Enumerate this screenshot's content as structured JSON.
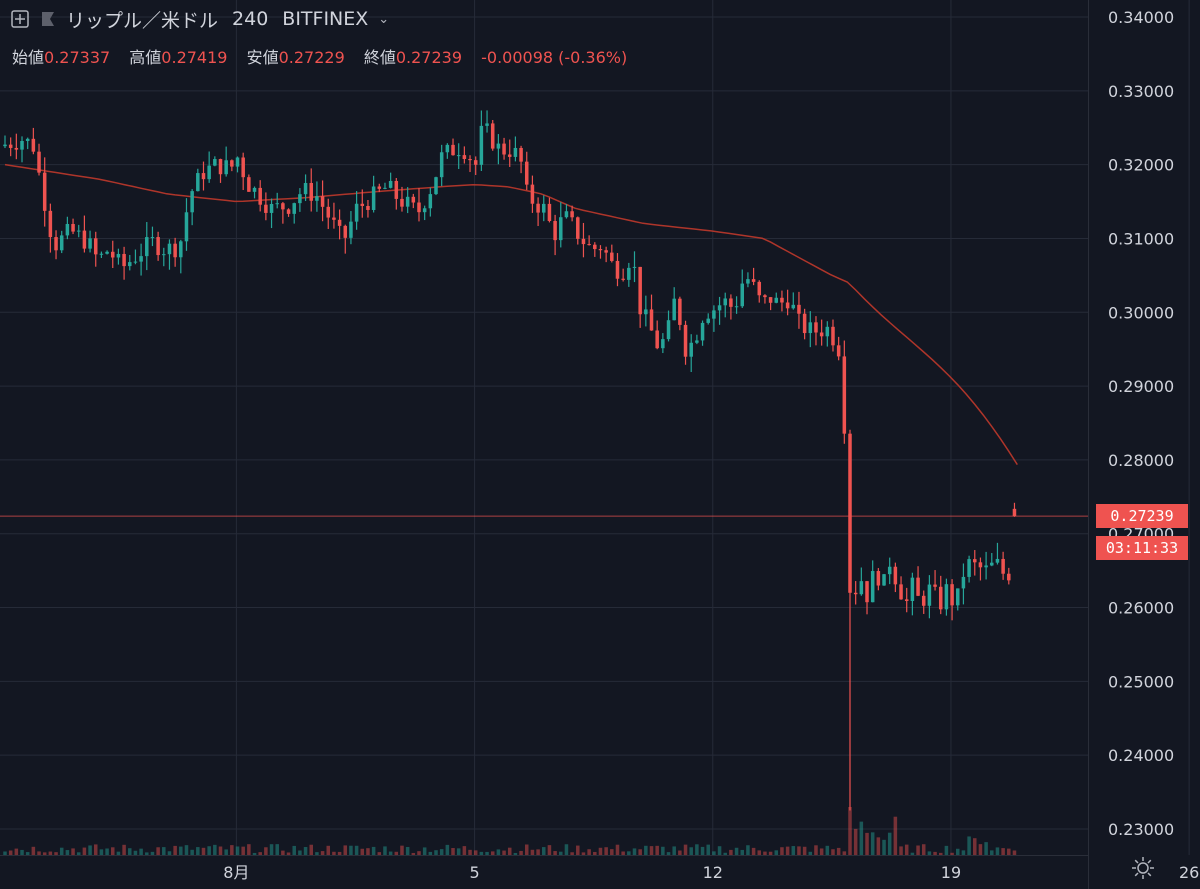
{
  "header": {
    "symbol": "リップル／米ドル",
    "interval": "240",
    "exchange": "BITFINEX"
  },
  "ohlc": {
    "open_label": "始値",
    "open": "0.27337",
    "high_label": "高値",
    "high": "0.27419",
    "low_label": "安値",
    "low": "0.27229",
    "close_label": "終値",
    "close": "0.27239",
    "change": "-0.00098 (-0.36%)"
  },
  "price_tag": {
    "last": "0.27239",
    "countdown": "03:11:33"
  },
  "colors": {
    "background": "#131722",
    "grid": "#262b38",
    "text": "#d1d4dc",
    "up": "#26a69a",
    "down": "#ef5350",
    "ma": "#c0392b"
  },
  "icons": [
    "add-symbol-icon",
    "flag-icon",
    "chevron-down-icon",
    "settings-sun-icon"
  ],
  "chart_data": {
    "type": "candlestick",
    "title": "リップル／米ドル 240 BITFINEX",
    "y_ticks": [
      "0.34000",
      "0.33000",
      "0.32000",
      "0.31000",
      "0.30000",
      "0.29000",
      "0.28000",
      "0.27000",
      "0.26000",
      "0.25000",
      "0.24000",
      "0.23000"
    ],
    "x_ticks": [
      "8月",
      "5",
      "12",
      "19",
      "26"
    ],
    "ylim": [
      0.2275,
      0.3425
    ],
    "day_range": [
      1.2,
      31
    ],
    "x_tick_days": [
      8,
      15,
      22,
      29,
      36
    ],
    "grid": true,
    "series": [
      {
        "name": "OHLC",
        "type": "candlestick",
        "anchors": [
          [
            1.2,
            0.3225
          ],
          [
            1.9,
            0.3235
          ],
          [
            2.2,
            0.3225
          ],
          [
            2.8,
            0.309
          ],
          [
            3.3,
            0.311
          ],
          [
            3.8,
            0.3095
          ],
          [
            4.1,
            0.307
          ],
          [
            4.4,
            0.3085
          ],
          [
            4.8,
            0.306
          ],
          [
            5.3,
            0.308
          ],
          [
            5.7,
            0.3095
          ],
          [
            6.1,
            0.3085
          ],
          [
            6.5,
            0.309
          ],
          [
            6.8,
            0.316
          ],
          [
            7.2,
            0.319
          ],
          [
            7.6,
            0.32
          ],
          [
            8.0,
            0.3195
          ],
          [
            8.2,
            0.321
          ],
          [
            8.5,
            0.3175
          ],
          [
            8.8,
            0.316
          ],
          [
            9.2,
            0.314
          ],
          [
            9.7,
            0.3145
          ],
          [
            10.1,
            0.3165
          ],
          [
            10.5,
            0.316
          ],
          [
            11.0,
            0.312
          ],
          [
            11.3,
            0.3095
          ],
          [
            11.7,
            0.314
          ],
          [
            12.0,
            0.315
          ],
          [
            12.3,
            0.316
          ],
          [
            12.6,
            0.317
          ],
          [
            12.9,
            0.3155
          ],
          [
            13.2,
            0.3145
          ],
          [
            13.5,
            0.3135
          ],
          [
            13.9,
            0.317
          ],
          [
            14.2,
            0.321
          ],
          [
            14.5,
            0.322
          ],
          [
            14.8,
            0.3225
          ],
          [
            15.2,
            0.32
          ],
          [
            15.4,
            0.325
          ],
          [
            15.6,
            0.324
          ],
          [
            15.9,
            0.322
          ],
          [
            16.2,
            0.322
          ],
          [
            16.5,
            0.321
          ],
          [
            16.7,
            0.316
          ],
          [
            16.9,
            0.315
          ],
          [
            17.2,
            0.314
          ],
          [
            17.5,
            0.3105
          ],
          [
            17.8,
            0.313
          ],
          [
            18.0,
            0.312
          ],
          [
            18.3,
            0.31
          ],
          [
            18.6,
            0.3085
          ],
          [
            18.9,
            0.309
          ],
          [
            19.2,
            0.3065
          ],
          [
            19.5,
            0.3055
          ],
          [
            19.8,
            0.308
          ],
          [
            20.0,
            0.301
          ],
          [
            20.3,
            0.298
          ],
          [
            20.6,
            0.295
          ],
          [
            20.9,
            0.298
          ],
          [
            21.1,
            0.303
          ],
          [
            21.3,
            0.295
          ],
          [
            21.6,
            0.296
          ],
          [
            21.9,
            0.3
          ],
          [
            22.2,
            0.3005
          ],
          [
            22.5,
            0.3015
          ],
          [
            22.8,
            0.3005
          ],
          [
            23.1,
            0.305
          ],
          [
            23.3,
            0.304
          ],
          [
            23.6,
            0.301
          ],
          [
            23.9,
            0.302
          ],
          [
            24.1,
            0.301
          ],
          [
            24.4,
            0.302
          ],
          [
            24.7,
            0.2985
          ],
          [
            25.0,
            0.2975
          ],
          [
            25.3,
            0.2975
          ],
          [
            25.5,
            0.298
          ],
          [
            25.8,
            0.296
          ],
          [
            26.0,
            0.2935
          ],
          [
            26.15,
            0.255
          ],
          [
            26.3,
            0.262
          ],
          [
            26.55,
            0.264
          ],
          [
            26.75,
            0.261
          ],
          [
            26.95,
            0.266
          ],
          [
            27.15,
            0.262
          ],
          [
            27.35,
            0.2665
          ],
          [
            27.55,
            0.264
          ],
          [
            27.85,
            0.2605
          ],
          [
            28.05,
            0.263
          ],
          [
            28.25,
            0.2605
          ],
          [
            28.55,
            0.2625
          ],
          [
            28.85,
            0.2605
          ],
          [
            29.05,
            0.2625
          ],
          [
            29.3,
            0.26
          ],
          [
            29.6,
            0.266
          ],
          [
            29.9,
            0.2655
          ],
          [
            30.2,
            0.265
          ],
          [
            30.5,
            0.266
          ],
          [
            30.8,
            0.264
          ],
          [
            31.0,
            0.266
          ]
        ]
      }
    ],
    "ma_anchors": [
      [
        1.2,
        0.32
      ],
      [
        4.0,
        0.318
      ],
      [
        6.0,
        0.316
      ],
      [
        8.0,
        0.315
      ],
      [
        10.0,
        0.3155
      ],
      [
        12.0,
        0.3163
      ],
      [
        14.0,
        0.317
      ],
      [
        15.0,
        0.3173
      ],
      [
        16.0,
        0.317
      ],
      [
        17.0,
        0.316
      ],
      [
        18.0,
        0.314
      ],
      [
        20.0,
        0.312
      ],
      [
        22.0,
        0.311
      ],
      [
        23.5,
        0.31
      ],
      [
        25.5,
        0.305
      ],
      [
        26.0,
        0.304
      ]
    ],
    "volume_note": "volume bars at bottom, spike near mid-August"
  }
}
